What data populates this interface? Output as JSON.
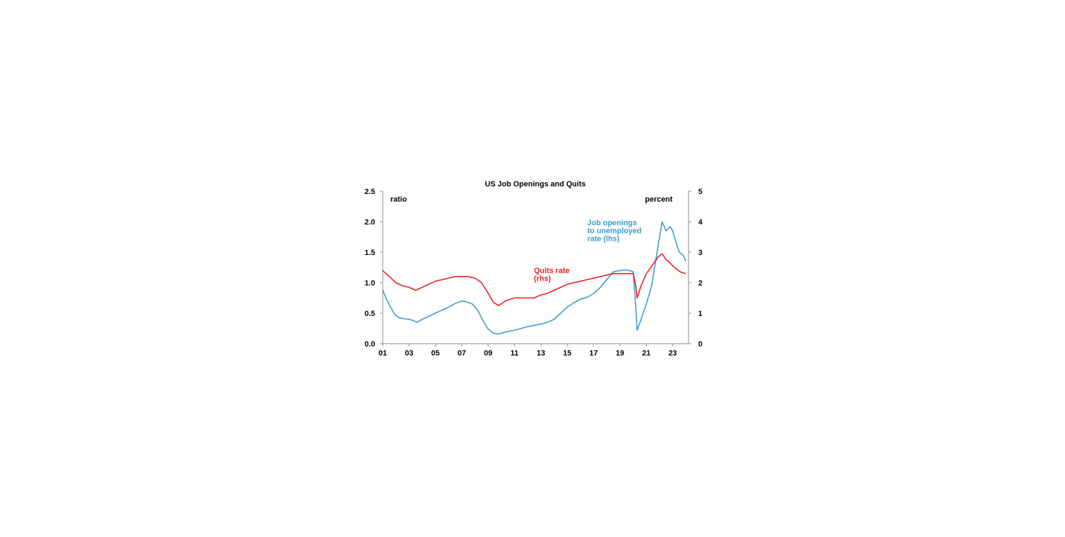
{
  "chart_data": {
    "type": "line",
    "title": "US Job Openings and Quits",
    "y_left": {
      "unit": "ratio",
      "range": [
        0,
        2.5
      ],
      "ticks": [
        "0.0",
        "0.5",
        "1.0",
        "1.5",
        "2.0",
        "2.5"
      ]
    },
    "y_right": {
      "unit": "percent",
      "range": [
        0,
        5
      ],
      "ticks": [
        "0",
        "1",
        "2",
        "3",
        "4",
        "5"
      ]
    },
    "x_axis": {
      "range": [
        2001,
        2024.2
      ],
      "ticks": [
        "01",
        "03",
        "05",
        "07",
        "09",
        "11",
        "13",
        "15",
        "17",
        "19",
        "21",
        "23"
      ]
    },
    "grid": false,
    "series": [
      {
        "label": "Job openings to unemployed rate (lhs)",
        "label_lines": [
          "Job openings",
          "to unemployed",
          "rate (lhs)"
        ],
        "axis": "left",
        "color": "#3b9cc8",
        "points": [
          [
            2001.0,
            0.88
          ],
          [
            2001.3,
            0.72
          ],
          [
            2001.6,
            0.6
          ],
          [
            2001.9,
            0.48
          ],
          [
            2002.2,
            0.43
          ],
          [
            2002.6,
            0.41
          ],
          [
            2003.0,
            0.4
          ],
          [
            2003.3,
            0.38
          ],
          [
            2003.6,
            0.35
          ],
          [
            2004.0,
            0.4
          ],
          [
            2004.5,
            0.45
          ],
          [
            2005.0,
            0.5
          ],
          [
            2005.5,
            0.55
          ],
          [
            2006.0,
            0.6
          ],
          [
            2006.5,
            0.66
          ],
          [
            2007.0,
            0.7
          ],
          [
            2007.3,
            0.69
          ],
          [
            2007.8,
            0.65
          ],
          [
            2008.2,
            0.55
          ],
          [
            2008.6,
            0.38
          ],
          [
            2009.0,
            0.24
          ],
          [
            2009.4,
            0.17
          ],
          [
            2009.8,
            0.16
          ],
          [
            2010.3,
            0.19
          ],
          [
            2011.0,
            0.22
          ],
          [
            2011.5,
            0.25
          ],
          [
            2012.0,
            0.28
          ],
          [
            2012.5,
            0.3
          ],
          [
            2013.0,
            0.32
          ],
          [
            2013.5,
            0.35
          ],
          [
            2014.0,
            0.4
          ],
          [
            2014.5,
            0.5
          ],
          [
            2015.0,
            0.6
          ],
          [
            2015.5,
            0.67
          ],
          [
            2016.0,
            0.73
          ],
          [
            2016.5,
            0.76
          ],
          [
            2017.0,
            0.82
          ],
          [
            2017.5,
            0.92
          ],
          [
            2018.0,
            1.05
          ],
          [
            2018.5,
            1.18
          ],
          [
            2019.0,
            1.2
          ],
          [
            2019.5,
            1.21
          ],
          [
            2020.0,
            1.18
          ],
          [
            2020.2,
            0.6
          ],
          [
            2020.3,
            0.22
          ],
          [
            2020.6,
            0.4
          ],
          [
            2021.0,
            0.65
          ],
          [
            2021.4,
            0.95
          ],
          [
            2021.7,
            1.35
          ],
          [
            2022.0,
            1.75
          ],
          [
            2022.2,
            2.0
          ],
          [
            2022.5,
            1.85
          ],
          [
            2022.8,
            1.92
          ],
          [
            2023.0,
            1.85
          ],
          [
            2023.2,
            1.7
          ],
          [
            2023.5,
            1.5
          ],
          [
            2023.8,
            1.45
          ],
          [
            2024.0,
            1.35
          ]
        ]
      },
      {
        "label": "Quits rate (rhs)",
        "label_lines": [
          "Quits rate",
          "(rhs)"
        ],
        "axis": "right",
        "color": "#ee1c25",
        "points": [
          [
            2001.0,
            2.4
          ],
          [
            2001.5,
            2.2
          ],
          [
            2002.0,
            2.0
          ],
          [
            2002.5,
            1.9
          ],
          [
            2003.0,
            1.85
          ],
          [
            2003.5,
            1.75
          ],
          [
            2004.0,
            1.85
          ],
          [
            2004.5,
            1.95
          ],
          [
            2005.0,
            2.05
          ],
          [
            2005.5,
            2.1
          ],
          [
            2006.0,
            2.15
          ],
          [
            2006.5,
            2.2
          ],
          [
            2007.0,
            2.2
          ],
          [
            2007.5,
            2.2
          ],
          [
            2008.0,
            2.15
          ],
          [
            2008.5,
            2.0
          ],
          [
            2009.0,
            1.65
          ],
          [
            2009.4,
            1.35
          ],
          [
            2009.8,
            1.25
          ],
          [
            2010.3,
            1.4
          ],
          [
            2011.0,
            1.5
          ],
          [
            2011.5,
            1.5
          ],
          [
            2012.0,
            1.5
          ],
          [
            2012.5,
            1.5
          ],
          [
            2013.0,
            1.6
          ],
          [
            2013.5,
            1.65
          ],
          [
            2014.0,
            1.75
          ],
          [
            2014.5,
            1.85
          ],
          [
            2015.0,
            1.95
          ],
          [
            2015.5,
            2.0
          ],
          [
            2016.0,
            2.05
          ],
          [
            2016.5,
            2.1
          ],
          [
            2017.0,
            2.15
          ],
          [
            2017.5,
            2.2
          ],
          [
            2018.0,
            2.25
          ],
          [
            2018.5,
            2.3
          ],
          [
            2019.0,
            2.3
          ],
          [
            2019.5,
            2.3
          ],
          [
            2020.0,
            2.3
          ],
          [
            2020.2,
            1.9
          ],
          [
            2020.3,
            1.5
          ],
          [
            2020.6,
            1.9
          ],
          [
            2021.0,
            2.3
          ],
          [
            2021.5,
            2.6
          ],
          [
            2021.9,
            2.85
          ],
          [
            2022.2,
            2.95
          ],
          [
            2022.5,
            2.75
          ],
          [
            2022.8,
            2.65
          ],
          [
            2023.0,
            2.55
          ],
          [
            2023.3,
            2.45
          ],
          [
            2023.6,
            2.35
          ],
          [
            2024.0,
            2.3
          ]
        ]
      }
    ]
  }
}
